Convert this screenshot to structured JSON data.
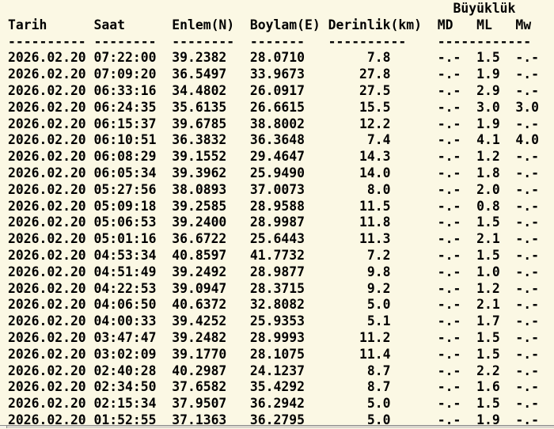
{
  "colors": {
    "background": "#FBF8E4",
    "text": "#000000",
    "scrollbar_track": "#D9D6CE",
    "scrollbar_edge": "#8C8C8C",
    "scrollbar_button": "#F3F1E8"
  },
  "table": {
    "group_header": "Büyüklük",
    "columns": [
      "Tarih",
      "Saat",
      "Enlem(N)",
      "Boylam(E)",
      "Derinlik(km)",
      "MD",
      "ML",
      "Mw"
    ],
    "separators": [
      "----------",
      "--------",
      "--------",
      "-------",
      "----------",
      "------------"
    ],
    "rows": [
      {
        "date": "2026.02.20",
        "time": "07:22:00",
        "lat": "39.2382",
        "lon": "28.0710",
        "depth": "7.8",
        "md": "-.-",
        "ml": "1.5",
        "mw": "-.-"
      },
      {
        "date": "2026.02.20",
        "time": "07:09:20",
        "lat": "36.5497",
        "lon": "33.9673",
        "depth": "27.8",
        "md": "-.-",
        "ml": "1.9",
        "mw": "-.-"
      },
      {
        "date": "2026.02.20",
        "time": "06:33:16",
        "lat": "34.4802",
        "lon": "26.0917",
        "depth": "27.5",
        "md": "-.-",
        "ml": "2.9",
        "mw": "-.-"
      },
      {
        "date": "2026.02.20",
        "time": "06:24:35",
        "lat": "35.6135",
        "lon": "26.6615",
        "depth": "15.5",
        "md": "-.-",
        "ml": "3.0",
        "mw": "3.0"
      },
      {
        "date": "2026.02.20",
        "time": "06:15:37",
        "lat": "39.6785",
        "lon": "38.8002",
        "depth": "12.2",
        "md": "-.-",
        "ml": "1.9",
        "mw": "-.-"
      },
      {
        "date": "2026.02.20",
        "time": "06:10:51",
        "lat": "36.3832",
        "lon": "36.3648",
        "depth": "7.4",
        "md": "-.-",
        "ml": "4.1",
        "mw": "4.0"
      },
      {
        "date": "2026.02.20",
        "time": "06:08:29",
        "lat": "39.1552",
        "lon": "29.4647",
        "depth": "14.3",
        "md": "-.-",
        "ml": "1.2",
        "mw": "-.-"
      },
      {
        "date": "2026.02.20",
        "time": "06:05:34",
        "lat": "39.3962",
        "lon": "25.9490",
        "depth": "14.0",
        "md": "-.-",
        "ml": "1.8",
        "mw": "-.-"
      },
      {
        "date": "2026.02.20",
        "time": "05:27:56",
        "lat": "38.0893",
        "lon": "37.0073",
        "depth": "8.0",
        "md": "-.-",
        "ml": "2.0",
        "mw": "-.-"
      },
      {
        "date": "2026.02.20",
        "time": "05:09:18",
        "lat": "39.2585",
        "lon": "28.9588",
        "depth": "11.5",
        "md": "-.-",
        "ml": "0.8",
        "mw": "-.-"
      },
      {
        "date": "2026.02.20",
        "time": "05:06:53",
        "lat": "39.2400",
        "lon": "28.9987",
        "depth": "11.8",
        "md": "-.-",
        "ml": "1.5",
        "mw": "-.-"
      },
      {
        "date": "2026.02.20",
        "time": "05:01:16",
        "lat": "36.6722",
        "lon": "25.6443",
        "depth": "11.3",
        "md": "-.-",
        "ml": "2.1",
        "mw": "-.-"
      },
      {
        "date": "2026.02.20",
        "time": "04:53:34",
        "lat": "40.8597",
        "lon": "41.7732",
        "depth": "7.2",
        "md": "-.-",
        "ml": "1.5",
        "mw": "-.-"
      },
      {
        "date": "2026.02.20",
        "time": "04:51:49",
        "lat": "39.2492",
        "lon": "28.9877",
        "depth": "9.8",
        "md": "-.-",
        "ml": "1.0",
        "mw": "-.-"
      },
      {
        "date": "2026.02.20",
        "time": "04:22:53",
        "lat": "39.0947",
        "lon": "28.3715",
        "depth": "9.2",
        "md": "-.-",
        "ml": "1.2",
        "mw": "-.-"
      },
      {
        "date": "2026.02.20",
        "time": "04:06:50",
        "lat": "40.6372",
        "lon": "32.8082",
        "depth": "5.0",
        "md": "-.-",
        "ml": "2.1",
        "mw": "-.-"
      },
      {
        "date": "2026.02.20",
        "time": "04:00:33",
        "lat": "39.4252",
        "lon": "25.9353",
        "depth": "5.1",
        "md": "-.-",
        "ml": "1.7",
        "mw": "-.-"
      },
      {
        "date": "2026.02.20",
        "time": "03:47:47",
        "lat": "39.2482",
        "lon": "28.9993",
        "depth": "11.2",
        "md": "-.-",
        "ml": "1.5",
        "mw": "-.-"
      },
      {
        "date": "2026.02.20",
        "time": "03:02:09",
        "lat": "39.1770",
        "lon": "28.1075",
        "depth": "11.4",
        "md": "-.-",
        "ml": "1.5",
        "mw": "-.-"
      },
      {
        "date": "2026.02.20",
        "time": "02:40:28",
        "lat": "40.2987",
        "lon": "24.1237",
        "depth": "8.7",
        "md": "-.-",
        "ml": "2.2",
        "mw": "-.-"
      },
      {
        "date": "2026.02.20",
        "time": "02:34:50",
        "lat": "37.6582",
        "lon": "35.4292",
        "depth": "8.7",
        "md": "-.-",
        "ml": "1.6",
        "mw": "-.-"
      },
      {
        "date": "2026.02.20",
        "time": "02:15:34",
        "lat": "37.9507",
        "lon": "36.2942",
        "depth": "5.0",
        "md": "-.-",
        "ml": "1.5",
        "mw": "-.-"
      },
      {
        "date": "2026.02.20",
        "time": "01:52:55",
        "lat": "37.1363",
        "lon": "36.2795",
        "depth": "5.0",
        "md": "-.-",
        "ml": "1.9",
        "mw": "-.-"
      }
    ]
  }
}
